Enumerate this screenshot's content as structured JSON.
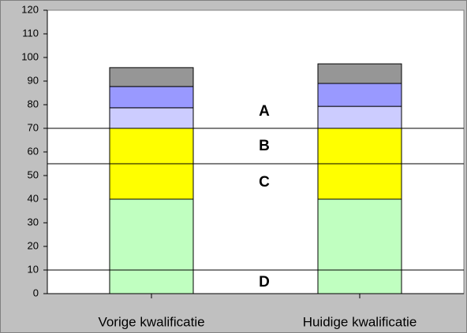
{
  "chart_data": {
    "type": "stacked_bar",
    "categories": [
      "Vorige kwalificatie",
      "Huidige kwalificatie"
    ],
    "series": [
      {
        "color": "#c0ffc0",
        "values": [
          40,
          40
        ]
      },
      {
        "color": "#ffff00",
        "values": [
          30,
          30
        ]
      },
      {
        "color": "#ccccff",
        "values": [
          8.7,
          9.3
        ]
      },
      {
        "color": "#9999ff",
        "values": [
          9,
          9.7
        ]
      },
      {
        "color": "#969696",
        "values": [
          8,
          8.3
        ]
      }
    ],
    "ylim": [
      0,
      120
    ],
    "yticks": [
      0,
      10,
      20,
      30,
      40,
      50,
      60,
      70,
      80,
      90,
      100,
      110,
      120
    ],
    "reference_lines": [
      70,
      55,
      10
    ],
    "annotations": [
      "A",
      "B",
      "C",
      "D"
    ]
  }
}
